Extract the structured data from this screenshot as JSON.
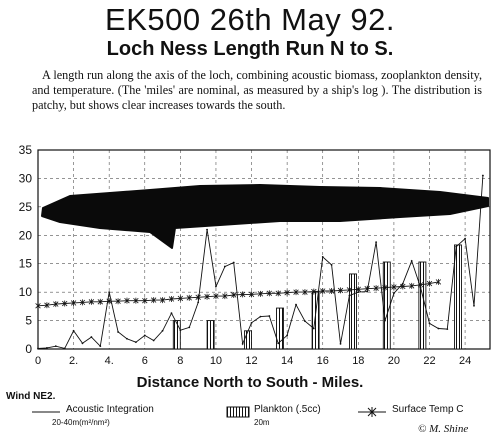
{
  "chart_data": {
    "type": "bar",
    "title": "EK500 26th May 92.",
    "subtitle": "Loch Ness Length Run N to S.",
    "description": "A length run along the axis of the loch, combining acoustic biomass, zooplankton density, and temperature. (The 'miles' are nominal, as measured by a ship's log ). The distribution is patchy, but shows clear increases towards the south.",
    "xlabel": "Distance North to South - Miles.",
    "ylabel": "",
    "xlim": [
      0,
      25.4
    ],
    "ylim": [
      0,
      35
    ],
    "yticks": [
      0,
      5,
      10,
      15,
      20,
      25,
      30,
      35
    ],
    "xticks": [
      {
        "value": 0,
        "label": "0"
      },
      {
        "value": 2,
        "label": "2."
      },
      {
        "value": 4,
        "label": "4."
      },
      {
        "value": 6,
        "label": "6"
      },
      {
        "value": 8,
        "label": "8"
      },
      {
        "value": 10,
        "label": "10"
      },
      {
        "value": 12,
        "label": "12"
      },
      {
        "value": 14,
        "label": "14"
      },
      {
        "value": 16,
        "label": "16"
      },
      {
        "value": 18,
        "label": "18"
      },
      {
        "value": 20,
        "label": "20"
      },
      {
        "value": 22,
        "label": "22"
      },
      {
        "value": 24,
        "label": "24"
      }
    ],
    "grid": "dashed",
    "series": [
      {
        "name": "Acoustic Integration",
        "units": "20-40m(m²/nm²)",
        "kind": "line",
        "x": [
          0,
          0.5,
          1,
          1.5,
          2,
          2.5,
          3,
          3.5,
          4,
          4.5,
          5,
          5.5,
          6,
          6.5,
          7,
          7.5,
          8,
          8.5,
          9,
          9.5,
          10,
          10.5,
          11,
          11.5,
          12,
          12.5,
          13,
          13.5,
          14,
          14.5,
          15,
          15.5,
          16,
          16.5,
          17,
          17.5,
          18,
          18.5,
          19,
          19.5,
          20,
          20.5,
          21,
          21.5,
          22,
          22.5,
          23,
          23.5,
          24,
          24.5,
          25
        ],
        "y": [
          0.1,
          0.2,
          0.5,
          0.1,
          3.2,
          1,
          2.1,
          0.5,
          10,
          3,
          1.8,
          1.2,
          2.4,
          1.5,
          3.2,
          6.3,
          3.3,
          3.8,
          8.2,
          21,
          11,
          14.5,
          15.2,
          0.9,
          4.6,
          5.7,
          5.8,
          1,
          2.4,
          7.8,
          4.9,
          3.6,
          16.2,
          14.8,
          0.9,
          9.4,
          10,
          10.1,
          18.8,
          5,
          9.8,
          11.5,
          15.5,
          10.8,
          4.5,
          3.6,
          3.5,
          18,
          19.4,
          7.6,
          30.5
        ]
      },
      {
        "name": "Plankton (.5cc)",
        "units": "20m",
        "kind": "bar",
        "x": [
          7.8,
          9.7,
          11.8,
          13.6,
          15.6,
          17.7,
          19.6,
          21.6,
          23.6
        ],
        "y": [
          5,
          5,
          3.2,
          7.2,
          10,
          13.2,
          15.3,
          15.3,
          18.3
        ]
      },
      {
        "name": "Surface Temp C",
        "kind": "line",
        "x": [
          0,
          0.5,
          1,
          1.5,
          2,
          2.5,
          3,
          3.5,
          4,
          4.5,
          5,
          5.5,
          6,
          6.5,
          7,
          7.5,
          8,
          8.5,
          9,
          9.5,
          10,
          10.5,
          11,
          11.5,
          12,
          12.5,
          13,
          13.5,
          14,
          14.5,
          15,
          15.5,
          16,
          16.5,
          17,
          17.5,
          18,
          18.5,
          19,
          19.5,
          20,
          20.5,
          21,
          21.5,
          22,
          22.5
        ],
        "y": [
          7.6,
          7.7,
          7.9,
          8,
          8.1,
          8.2,
          8.3,
          8.3,
          8.4,
          8.4,
          8.5,
          8.5,
          8.5,
          8.6,
          8.6,
          8.8,
          8.9,
          9,
          9.1,
          9.2,
          9.3,
          9.3,
          9.5,
          9.6,
          9.6,
          9.7,
          9.8,
          9.8,
          9.9,
          10,
          10,
          10.1,
          10.2,
          10.2,
          10.3,
          10.4,
          10.5,
          10.6,
          10.7,
          10.8,
          10.9,
          11,
          11.1,
          11.3,
          11.5,
          11.8
        ]
      }
    ]
  },
  "wind_label": "Wind NE2.",
  "signature": "© M. Shine",
  "colors": {
    "ink": "#111111",
    "grid": "#555555",
    "background": "#ffffff",
    "redacted": "#0a0a0a"
  }
}
